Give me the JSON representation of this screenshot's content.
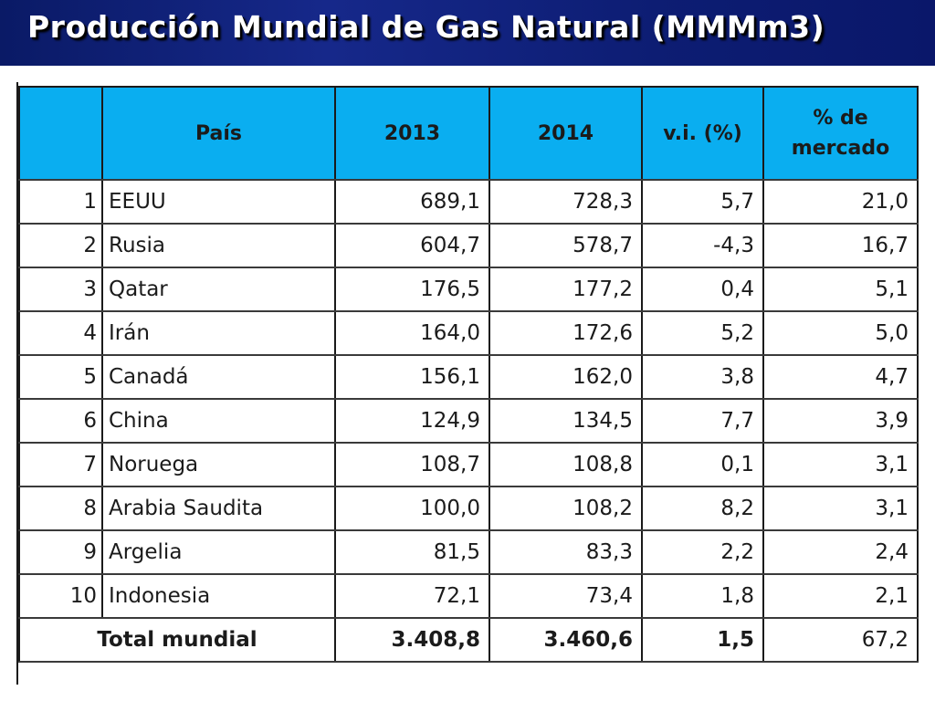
{
  "title": "Producción Mundial de Gas Natural (MMMm3)",
  "table": {
    "headers": {
      "rank": "",
      "country": "País",
      "y2013": "2013",
      "y2014": "2014",
      "vi": "v.i. (%)",
      "share": "% de mercado"
    },
    "rows": [
      {
        "rank": "1",
        "country": "EEUU",
        "y2013": "689,1",
        "y2014": "728,3",
        "vi": "5,7",
        "share": "21,0"
      },
      {
        "rank": "2",
        "country": "Rusia",
        "y2013": "604,7",
        "y2014": "578,7",
        "vi": "-4,3",
        "share": "16,7"
      },
      {
        "rank": "3",
        "country": "Qatar",
        "y2013": "176,5",
        "y2014": "177,2",
        "vi": "0,4",
        "share": "5,1"
      },
      {
        "rank": "4",
        "country": "Irán",
        "y2013": "164,0",
        "y2014": "172,6",
        "vi": "5,2",
        "share": "5,0"
      },
      {
        "rank": "5",
        "country": "Canadá",
        "y2013": "156,1",
        "y2014": "162,0",
        "vi": "3,8",
        "share": "4,7"
      },
      {
        "rank": "6",
        "country": "China",
        "y2013": "124,9",
        "y2014": "134,5",
        "vi": "7,7",
        "share": "3,9"
      },
      {
        "rank": "7",
        "country": "Noruega",
        "y2013": "108,7",
        "y2014": "108,8",
        "vi": "0,1",
        "share": "3,1"
      },
      {
        "rank": "8",
        "country": "Arabia Saudita",
        "y2013": "100,0",
        "y2014": "108,2",
        "vi": "8,2",
        "share": "3,1"
      },
      {
        "rank": "9",
        "country": "Argelia",
        "y2013": "81,5",
        "y2014": "83,3",
        "vi": "2,2",
        "share": "2,4"
      },
      {
        "rank": "10",
        "country": "Indonesia",
        "y2013": "72,1",
        "y2014": "73,4",
        "vi": "1,8",
        "share": "2,1"
      }
    ],
    "total": {
      "label": "Total mundial",
      "y2013": "3.408,8",
      "y2014": "3.460,6",
      "vi": "1,5",
      "share": "67,2"
    }
  },
  "colors": {
    "title_bar": "#16288a",
    "header_bg": "#0aaef0",
    "border": "#1a1a1a"
  }
}
